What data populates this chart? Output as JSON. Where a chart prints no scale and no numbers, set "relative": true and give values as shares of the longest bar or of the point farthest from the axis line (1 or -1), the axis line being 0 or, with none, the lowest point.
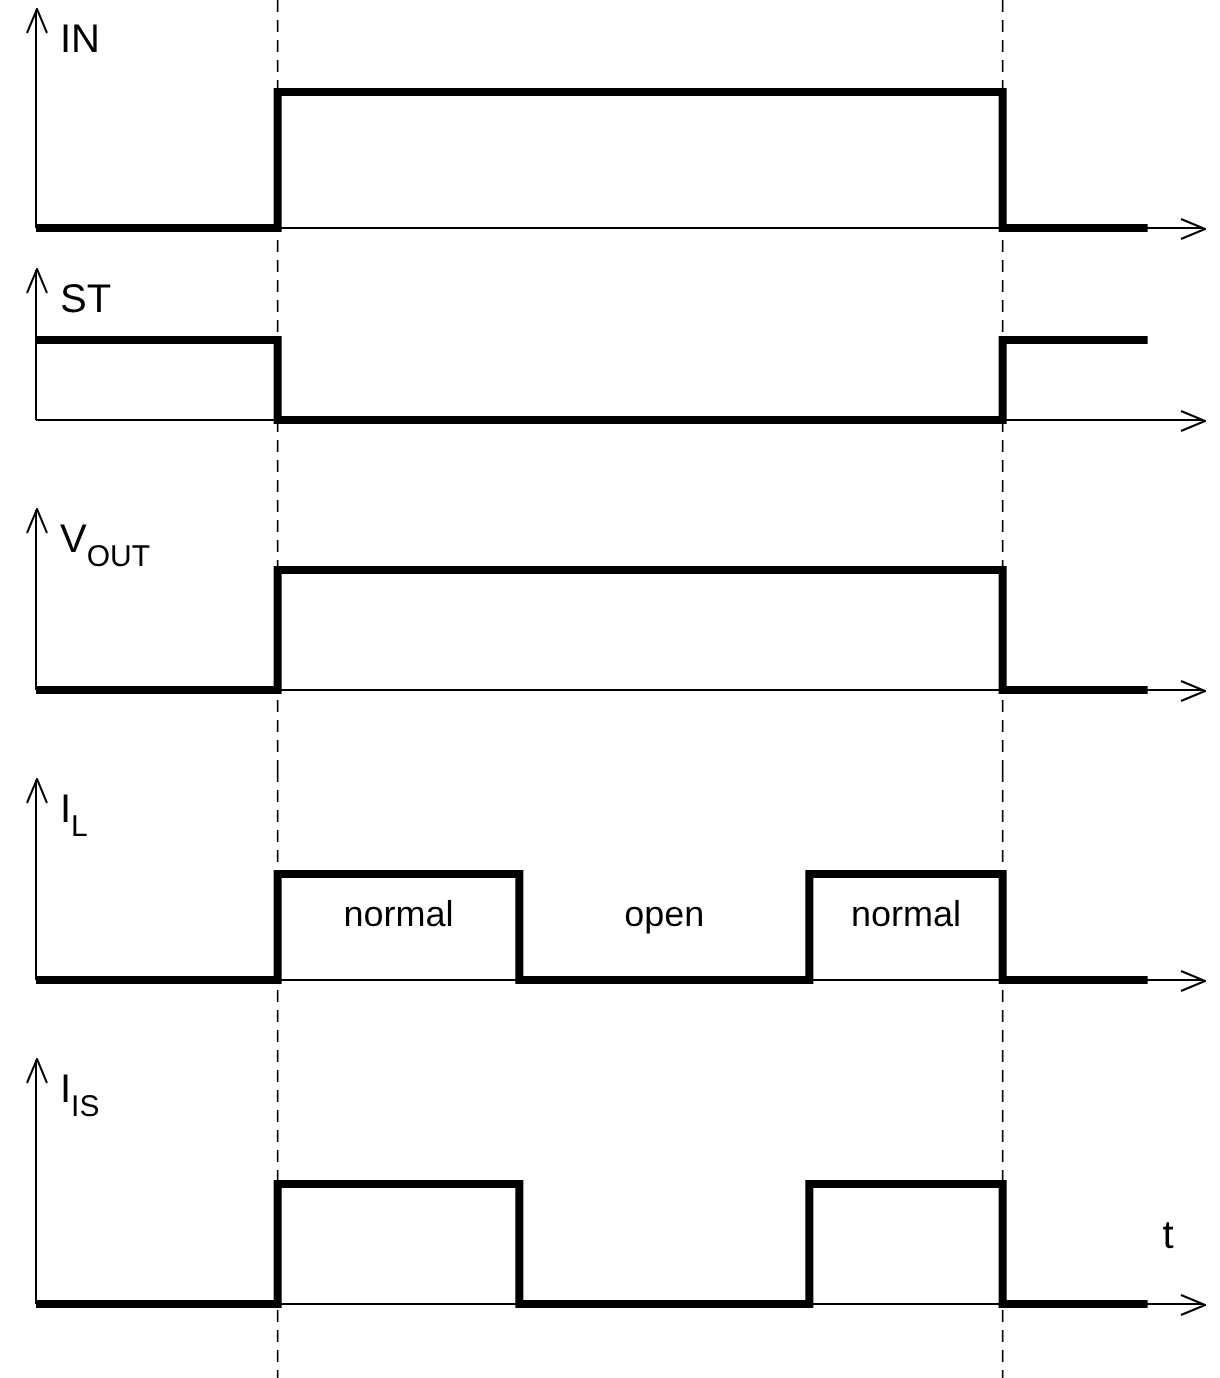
{
  "chart_data": [
    {
      "type": "step",
      "relative": true,
      "ylabel": "IN",
      "tick_labels": false,
      "color": "#000000",
      "categories": [
        null,
        null,
        null,
        null,
        null,
        null,
        null,
        null,
        null,
        null,
        null,
        null,
        null,
        null,
        null,
        null,
        null,
        null,
        null,
        null,
        null,
        null,
        null,
        null,
        null
      ],
      "values": [
        0,
        0,
        0,
        0,
        0,
        1,
        1,
        1,
        1,
        1,
        1,
        1,
        1,
        1,
        1,
        1,
        1,
        1,
        1,
        1,
        0,
        0,
        0,
        0,
        null
      ]
    },
    {
      "type": "step",
      "relative": true,
      "ylabel": "ST",
      "tick_labels": false,
      "color": "#000000",
      "categories": [
        null,
        null,
        null,
        null,
        null,
        null,
        null,
        null,
        null,
        null,
        null,
        null,
        null,
        null,
        null,
        null,
        null,
        null,
        null,
        null,
        null,
        null,
        null,
        null,
        null
      ],
      "values": [
        1,
        1,
        1,
        1,
        1,
        0,
        0,
        0,
        0,
        0,
        0,
        0,
        0,
        0,
        0,
        0,
        0,
        0,
        0,
        0,
        1,
        1,
        1,
        1,
        null
      ]
    },
    {
      "type": "step",
      "relative": true,
      "ylabel": "V$_{OUT}$",
      "tick_labels": false,
      "color": "#000000",
      "categories": [
        null,
        null,
        null,
        null,
        null,
        null,
        null,
        null,
        null,
        null,
        null,
        null,
        null,
        null,
        null,
        null,
        null,
        null,
        null,
        null,
        null,
        null,
        null,
        null,
        null
      ],
      "values": [
        0,
        0,
        0,
        0,
        0,
        1,
        1,
        1,
        1,
        1,
        1,
        1,
        1,
        1,
        1,
        1,
        1,
        1,
        1,
        1,
        0,
        0,
        0,
        0,
        null
      ]
    },
    {
      "type": "step",
      "relative": true,
      "ylabel": "I$_{L}$",
      "tick_labels": false,
      "color": "#000000",
      "categories": [
        null,
        null,
        null,
        null,
        null,
        null,
        null,
        null,
        null,
        null,
        null,
        null,
        null,
        null,
        null,
        null,
        null,
        null,
        null,
        null,
        null,
        null,
        null,
        null,
        null
      ],
      "values": [
        0,
        0,
        0,
        0,
        0,
        1,
        1,
        1,
        1,
        1,
        0,
        0,
        0,
        0,
        0,
        0,
        1,
        1,
        1,
        1,
        0,
        0,
        0,
        0,
        null
      ],
      "annotations": [
        "normal",
        "open",
        "normal"
      ]
    },
    {
      "type": "step",
      "relative": true,
      "ylabel": "I$_{IS}$",
      "xlabel": "t",
      "tick_labels": false,
      "color": "#000000",
      "categories": [
        null,
        null,
        null,
        null,
        null,
        null,
        null,
        null,
        null,
        null,
        null,
        null,
        null,
        null,
        null,
        null,
        null,
        null,
        null,
        null,
        null,
        null,
        null,
        null,
        null
      ],
      "values": [
        0,
        0,
        0,
        0,
        0,
        1,
        1,
        1,
        1,
        1,
        0,
        0,
        0,
        0,
        0,
        0,
        1,
        1,
        1,
        1,
        0,
        0,
        0,
        0,
        null
      ]
    }
  ]
}
